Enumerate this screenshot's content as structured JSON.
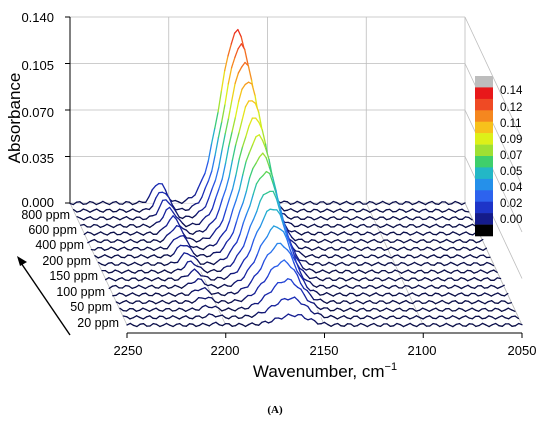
{
  "chart_data": {
    "type": "line",
    "subtype": "3d-waterfall",
    "xlabel": "Wavenumber, cm",
    "xlabel_sup": "−1",
    "ylabel": "Absorbance",
    "caption": "(A)",
    "xlim": [
      2250,
      2050
    ],
    "ylim": [
      0.0,
      0.14
    ],
    "x_ticks": [
      "2250",
      "2200",
      "2150",
      "2100",
      "2050"
    ],
    "y_ticks": [
      "0.000",
      "0.035",
      "0.070",
      "0.105",
      "0.140"
    ],
    "z_ticks": [
      "20 ppm",
      "50 ppm",
      "100 ppm",
      "150 ppm",
      "200 ppm",
      "400 ppm",
      "600 ppm",
      "800 ppm"
    ],
    "grid": true,
    "colorbar": {
      "labels": [
        "0.14",
        "0.12",
        "0.11",
        "0.09",
        "0.07",
        "0.05",
        "0.04",
        "0.02",
        "0.00"
      ],
      "colors": [
        "#bdbdbd",
        "#e8181a",
        "#ef4a24",
        "#f5871f",
        "#f7c11b",
        "#ddf019",
        "#9fe033",
        "#3fcf6c",
        "#23b7c6",
        "#2590ea",
        "#2d63ee",
        "#1d34c8",
        "#141b8a",
        "#000000"
      ]
    },
    "series": [
      {
        "peak_x": 2165,
        "peak_y": 0.0075
      },
      {
        "peak_x": 2165,
        "peak_y": 0.0145
      },
      {
        "peak_x": 2165,
        "peak_y": 0.0225
      },
      {
        "peak_x": 2165,
        "peak_y": 0.0305
      },
      {
        "peak_x": 2165,
        "peak_y": 0.038
      },
      {
        "peak_x": 2165,
        "peak_y": 0.0455
      },
      {
        "peak_x": 2165,
        "peak_y": 0.0535
      },
      {
        "peak_x": 2165,
        "peak_y": 0.061
      },
      {
        "peak_x": 2165,
        "peak_y": 0.069
      },
      {
        "peak_x": 2165,
        "peak_y": 0.0765
      },
      {
        "peak_x": 2165,
        "peak_y": 0.085
      },
      {
        "peak_x": 2165,
        "peak_y": 0.093
      },
      {
        "peak_x": 2165,
        "peak_y": 0.101
      },
      {
        "peak_x": 2165,
        "peak_y": 0.109
      },
      {
        "peak_x": 2165,
        "peak_y": 0.117
      },
      {
        "peak_x": 2165,
        "peak_y": 0.1245
      },
      {
        "peak_x": 2165,
        "peak_y": 0.1295
      }
    ]
  }
}
